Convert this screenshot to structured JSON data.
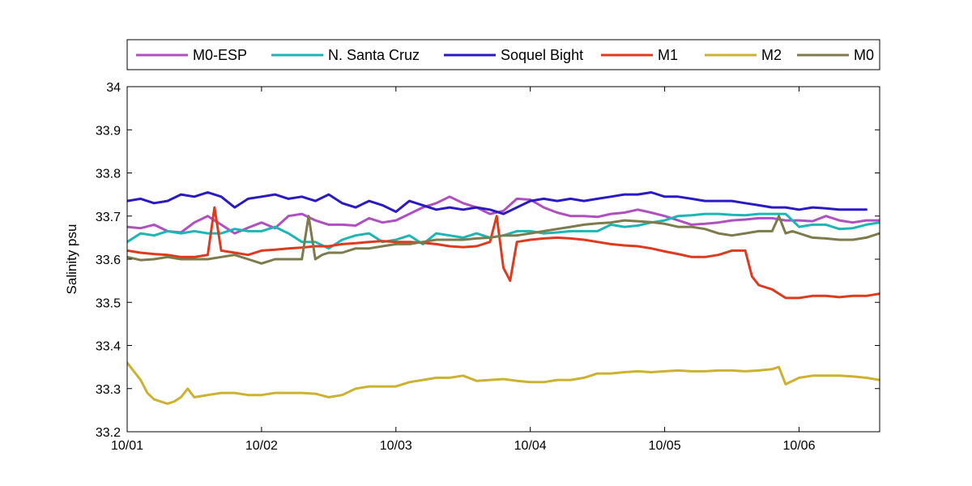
{
  "chart_data": {
    "type": "line",
    "title": "",
    "xlabel": "",
    "ylabel": "Salinity psu",
    "xlim": [
      0,
      5.6
    ],
    "ylim": [
      33.2,
      34.0
    ],
    "xticks": [
      {
        "value": 0,
        "label": "10/01"
      },
      {
        "value": 1,
        "label": "10/02"
      },
      {
        "value": 2,
        "label": "10/03"
      },
      {
        "value": 3,
        "label": "10/04"
      },
      {
        "value": 4,
        "label": "10/05"
      },
      {
        "value": 5,
        "label": "10/06"
      }
    ],
    "yticks": [
      {
        "value": 33.2,
        "label": "33.2"
      },
      {
        "value": 33.3,
        "label": "33.3"
      },
      {
        "value": 33.4,
        "label": "33.4"
      },
      {
        "value": 33.5,
        "label": "33.5"
      },
      {
        "value": 33.6,
        "label": "33.6"
      },
      {
        "value": 33.7,
        "label": "33.7"
      },
      {
        "value": 33.8,
        "label": "33.8"
      },
      {
        "value": 33.9,
        "label": "33.9"
      },
      {
        "value": 34.0,
        "label": "34"
      }
    ],
    "grid": false,
    "legend_position": "top",
    "series": [
      {
        "name": "M0-ESP",
        "color": "#B04FC0",
        "x": [
          0,
          0.1,
          0.2,
          0.3,
          0.4,
          0.5,
          0.6,
          0.7,
          0.8,
          0.9,
          1.0,
          1.1,
          1.2,
          1.3,
          1.4,
          1.5,
          1.6,
          1.7,
          1.8,
          1.9,
          2.0,
          2.1,
          2.2,
          2.3,
          2.4,
          2.5,
          2.6,
          2.7,
          2.8,
          2.9,
          3.0,
          3.1,
          3.2,
          3.3,
          3.4,
          3.5,
          3.6,
          3.7,
          3.8,
          3.9,
          4.0,
          4.1,
          4.2,
          4.3,
          4.4,
          4.5,
          4.6,
          4.7,
          4.8,
          4.9,
          5.0,
          5.1,
          5.2,
          5.3,
          5.4,
          5.5,
          5.6
        ],
        "values": [
          33.675,
          33.672,
          33.68,
          33.665,
          33.662,
          33.685,
          33.7,
          33.68,
          33.66,
          33.673,
          33.685,
          33.672,
          33.7,
          33.705,
          33.69,
          33.68,
          33.68,
          33.678,
          33.695,
          33.685,
          33.69,
          33.705,
          33.72,
          33.73,
          33.745,
          33.73,
          33.72,
          33.705,
          33.712,
          33.74,
          33.738,
          33.72,
          33.708,
          33.7,
          33.7,
          33.698,
          33.705,
          33.708,
          33.715,
          33.708,
          33.7,
          33.69,
          33.68,
          33.682,
          33.685,
          33.69,
          33.692,
          33.695,
          33.695,
          33.69,
          33.69,
          33.688,
          33.7,
          33.69,
          33.685,
          33.69,
          33.69
        ]
      },
      {
        "name": "N. Santa Cruz",
        "color": "#1CB6B4",
        "x": [
          0,
          0.1,
          0.2,
          0.3,
          0.4,
          0.5,
          0.6,
          0.7,
          0.8,
          0.9,
          1.0,
          1.1,
          1.2,
          1.3,
          1.4,
          1.5,
          1.6,
          1.7,
          1.8,
          1.9,
          2.0,
          2.1,
          2.2,
          2.3,
          2.4,
          2.5,
          2.6,
          2.7,
          2.8,
          2.9,
          3.0,
          3.1,
          3.2,
          3.3,
          3.4,
          3.5,
          3.6,
          3.7,
          3.8,
          3.9,
          4.0,
          4.1,
          4.2,
          4.3,
          4.4,
          4.5,
          4.6,
          4.7,
          4.8,
          4.9,
          5.0,
          5.1,
          5.2,
          5.3,
          5.4,
          5.5,
          5.6
        ],
        "values": [
          33.64,
          33.66,
          33.655,
          33.665,
          33.66,
          33.665,
          33.66,
          33.66,
          33.67,
          33.665,
          33.665,
          33.675,
          33.66,
          33.64,
          33.64,
          33.625,
          33.645,
          33.655,
          33.66,
          33.64,
          33.645,
          33.655,
          33.635,
          33.66,
          33.655,
          33.65,
          33.66,
          33.65,
          33.655,
          33.665,
          33.665,
          33.66,
          33.662,
          33.665,
          33.665,
          33.665,
          33.68,
          33.675,
          33.678,
          33.685,
          33.69,
          33.7,
          33.702,
          33.705,
          33.705,
          33.703,
          33.702,
          33.705,
          33.705,
          33.705,
          33.675,
          33.68,
          33.68,
          33.67,
          33.672,
          33.68,
          33.685
        ]
      },
      {
        "name": "Soquel Bight",
        "color": "#2A1AC4",
        "x": [
          0,
          0.1,
          0.2,
          0.3,
          0.4,
          0.5,
          0.6,
          0.7,
          0.8,
          0.9,
          1.0,
          1.1,
          1.2,
          1.3,
          1.4,
          1.5,
          1.6,
          1.7,
          1.8,
          1.9,
          2.0,
          2.1,
          2.2,
          2.3,
          2.4,
          2.5,
          2.6,
          2.7,
          2.8,
          2.9,
          3.0,
          3.1,
          3.2,
          3.3,
          3.4,
          3.5,
          3.6,
          3.7,
          3.8,
          3.9,
          4.0,
          4.1,
          4.2,
          4.3,
          4.4,
          4.5,
          4.6,
          4.7,
          4.8,
          4.9,
          5.0,
          5.1,
          5.2,
          5.3,
          5.4,
          5.5
        ],
        "values": [
          33.735,
          33.74,
          33.73,
          33.735,
          33.75,
          33.745,
          33.755,
          33.745,
          33.72,
          33.74,
          33.745,
          33.75,
          33.74,
          33.745,
          33.735,
          33.75,
          33.73,
          33.72,
          33.735,
          33.725,
          33.71,
          33.735,
          33.725,
          33.715,
          33.72,
          33.715,
          33.72,
          33.715,
          33.705,
          33.72,
          33.735,
          33.74,
          33.735,
          33.74,
          33.735,
          33.74,
          33.745,
          33.75,
          33.75,
          33.755,
          33.745,
          33.745,
          33.74,
          33.735,
          33.735,
          33.735,
          33.73,
          33.725,
          33.72,
          33.72,
          33.715,
          33.72,
          33.718,
          33.715,
          33.715,
          33.715
        ]
      },
      {
        "name": "M1",
        "color": "#E03A1E",
        "x": [
          0,
          0.1,
          0.2,
          0.3,
          0.4,
          0.5,
          0.6,
          0.65,
          0.7,
          0.8,
          0.9,
          1.0,
          1.1,
          1.2,
          1.3,
          1.4,
          1.5,
          1.6,
          1.7,
          1.8,
          1.9,
          2.0,
          2.1,
          2.2,
          2.3,
          2.4,
          2.5,
          2.6,
          2.7,
          2.75,
          2.8,
          2.85,
          2.9,
          3.0,
          3.1,
          3.2,
          3.3,
          3.4,
          3.5,
          3.6,
          3.7,
          3.8,
          3.9,
          4.0,
          4.1,
          4.2,
          4.3,
          4.4,
          4.5,
          4.6,
          4.65,
          4.7,
          4.8,
          4.9,
          5.0,
          5.1,
          5.2,
          5.3,
          5.4,
          5.5,
          5.6
        ],
        "values": [
          33.62,
          33.615,
          33.612,
          33.61,
          33.605,
          33.605,
          33.61,
          33.72,
          33.62,
          33.615,
          33.61,
          33.62,
          33.622,
          33.625,
          33.627,
          33.63,
          33.63,
          33.635,
          33.637,
          33.64,
          33.642,
          33.64,
          33.64,
          33.638,
          33.635,
          33.63,
          33.628,
          33.63,
          33.64,
          33.7,
          33.58,
          33.55,
          33.64,
          33.645,
          33.648,
          33.65,
          33.648,
          33.645,
          33.64,
          33.635,
          33.632,
          33.63,
          33.625,
          33.618,
          33.612,
          33.605,
          33.605,
          33.61,
          33.62,
          33.62,
          33.56,
          33.54,
          33.53,
          33.51,
          33.51,
          33.515,
          33.515,
          33.512,
          33.515,
          33.515,
          33.52
        ]
      },
      {
        "name": "M2",
        "color": "#CCB230",
        "x": [
          0,
          0.05,
          0.1,
          0.15,
          0.2,
          0.3,
          0.35,
          0.4,
          0.45,
          0.5,
          0.6,
          0.7,
          0.8,
          0.9,
          1.0,
          1.1,
          1.2,
          1.3,
          1.4,
          1.5,
          1.6,
          1.7,
          1.8,
          1.9,
          2.0,
          2.1,
          2.2,
          2.3,
          2.4,
          2.5,
          2.6,
          2.7,
          2.8,
          2.9,
          3.0,
          3.1,
          3.2,
          3.3,
          3.4,
          3.5,
          3.6,
          3.7,
          3.8,
          3.9,
          4.0,
          4.1,
          4.2,
          4.3,
          4.4,
          4.5,
          4.6,
          4.7,
          4.8,
          4.85,
          4.9,
          5.0,
          5.1,
          5.2,
          5.3,
          5.4,
          5.5,
          5.6
        ],
        "values": [
          33.36,
          33.34,
          33.32,
          33.29,
          33.275,
          33.265,
          33.27,
          33.28,
          33.3,
          33.28,
          33.285,
          33.29,
          33.29,
          33.285,
          33.285,
          33.29,
          33.29,
          33.29,
          33.288,
          33.28,
          33.285,
          33.3,
          33.305,
          33.305,
          33.305,
          33.315,
          33.32,
          33.325,
          33.325,
          33.33,
          33.318,
          33.32,
          33.322,
          33.318,
          33.315,
          33.315,
          33.32,
          33.32,
          33.325,
          33.335,
          33.335,
          33.338,
          33.34,
          33.338,
          33.34,
          33.342,
          33.34,
          33.34,
          33.342,
          33.342,
          33.34,
          33.342,
          33.345,
          33.35,
          33.31,
          33.325,
          33.33,
          33.33,
          33.33,
          33.328,
          33.325,
          33.32
        ]
      },
      {
        "name": "M0",
        "color": "#7D7B4C",
        "x": [
          0,
          0.1,
          0.2,
          0.3,
          0.4,
          0.5,
          0.6,
          0.7,
          0.8,
          0.9,
          1.0,
          1.1,
          1.2,
          1.3,
          1.35,
          1.4,
          1.45,
          1.5,
          1.6,
          1.7,
          1.8,
          1.9,
          2.0,
          2.1,
          2.2,
          2.3,
          2.4,
          2.5,
          2.6,
          2.7,
          2.8,
          2.9,
          3.0,
          3.1,
          3.2,
          3.3,
          3.4,
          3.5,
          3.6,
          3.7,
          3.8,
          3.9,
          4.0,
          4.1,
          4.2,
          4.3,
          4.4,
          4.5,
          4.6,
          4.7,
          4.8,
          4.85,
          4.9,
          4.95,
          5.0,
          5.1,
          5.2,
          5.3,
          5.4,
          5.5,
          5.6
        ],
        "values": [
          33.605,
          33.598,
          33.6,
          33.605,
          33.6,
          33.6,
          33.6,
          33.605,
          33.61,
          33.6,
          33.59,
          33.6,
          33.6,
          33.6,
          33.7,
          33.6,
          33.61,
          33.615,
          33.615,
          33.625,
          33.625,
          33.63,
          33.635,
          33.635,
          33.64,
          33.645,
          33.645,
          33.645,
          33.648,
          33.65,
          33.655,
          33.655,
          33.66,
          33.665,
          33.67,
          33.675,
          33.68,
          33.683,
          33.685,
          33.69,
          33.688,
          33.686,
          33.682,
          33.675,
          33.675,
          33.67,
          33.66,
          33.655,
          33.66,
          33.665,
          33.665,
          33.7,
          33.66,
          33.665,
          33.66,
          33.65,
          33.648,
          33.645,
          33.645,
          33.65,
          33.66
        ]
      }
    ]
  }
}
